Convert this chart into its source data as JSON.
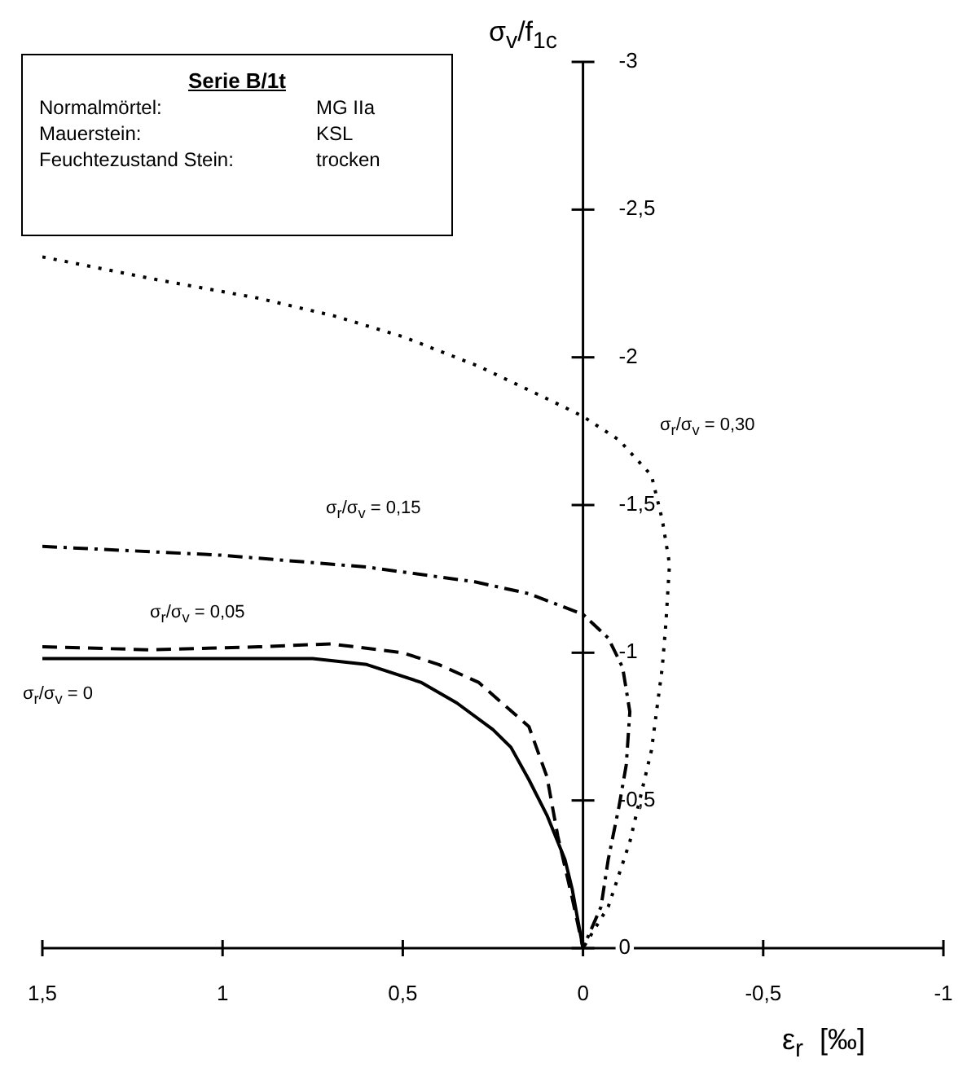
{
  "chart_data": {
    "type": "line",
    "title": "Serie B/1t",
    "annotations": [
      "Normalmörtel:",
      "MG IIa",
      "Mauerstein:",
      "KSL",
      "Feuchtezustand Stein:",
      "trocken"
    ],
    "xlabel": "ε$_{r}$  [‰]",
    "ylabel": "σ$_{v}$/f$_{1c}$",
    "xlim": [
      1.5,
      -1
    ],
    "ylim": [
      0,
      -3
    ],
    "xticks": [
      {
        "value": 1.5,
        "label": "1,5"
      },
      1,
      {
        "value": 0.5,
        "label": "0,5"
      },
      0,
      {
        "value": -0.5,
        "label": "-0,5"
      },
      -1
    ],
    "yticks": [
      0,
      {
        "value": -0.5,
        "label": "-0,5"
      },
      -1,
      {
        "value": -1.5,
        "label": "-1,5"
      },
      -2,
      {
        "value": -2.5,
        "label": "-2,5"
      },
      -3
    ],
    "series": [
      {
        "name": "σ$_{r}$/σ$_{v}$ = 0",
        "color": "#000000",
        "line_style": "solid",
        "x": [
          1.5,
          1.0,
          0.75,
          0.6,
          0.45,
          0.35,
          0.25,
          0.2,
          0.15,
          0.1,
          0.05,
          0.03,
          0
        ],
        "values": [
          -0.98,
          -0.98,
          -0.98,
          -0.96,
          -0.9,
          -0.83,
          -0.74,
          -0.68,
          -0.57,
          -0.45,
          -0.3,
          -0.2,
          0
        ]
      },
      {
        "name": "σ$_{r}$/σ$_{v}$ = 0,05",
        "color": "#000000",
        "line_style": "dashed",
        "x": [
          1.5,
          1.2,
          0.9,
          0.7,
          0.5,
          0.4,
          0.29,
          0.15,
          0.1,
          0.07,
          0.03,
          0
        ],
        "values": [
          -1.02,
          -1.01,
          -1.02,
          -1.03,
          -1.0,
          -0.96,
          -0.9,
          -0.75,
          -0.58,
          -0.38,
          -0.17,
          0
        ]
      },
      {
        "name": "σ$_{r}$/σ$_{v}$ = 0,15",
        "color": "#000000",
        "line_style": "dashdot",
        "x": [
          1.5,
          1.0,
          0.6,
          0.3,
          0.15,
          0,
          -0.07,
          -0.11,
          -0.13,
          -0.12,
          -0.1,
          -0.07,
          -0.05,
          0
        ],
        "values": [
          -1.36,
          -1.33,
          -1.29,
          -1.24,
          -1.2,
          -1.13,
          -1.05,
          -0.95,
          -0.8,
          -0.62,
          -0.48,
          -0.3,
          -0.14,
          0
        ]
      },
      {
        "name": "σ$_{r}$/σ$_{v}$ = 0,30",
        "color": "#000000",
        "line_style": "dotted",
        "x": [
          1.5,
          1.17,
          0.9,
          0.69,
          0.5,
          0.29,
          0.1,
          0,
          -0.1,
          -0.19,
          -0.22,
          -0.24,
          -0.23,
          -0.22,
          -0.19,
          -0.13,
          -0.07,
          0
        ],
        "values": [
          -2.34,
          -2.26,
          -2.2,
          -2.14,
          -2.07,
          -1.97,
          -1.86,
          -1.8,
          -1.72,
          -1.6,
          -1.45,
          -1.3,
          -1.1,
          -0.95,
          -0.67,
          -0.36,
          -0.14,
          0
        ]
      }
    ]
  }
}
